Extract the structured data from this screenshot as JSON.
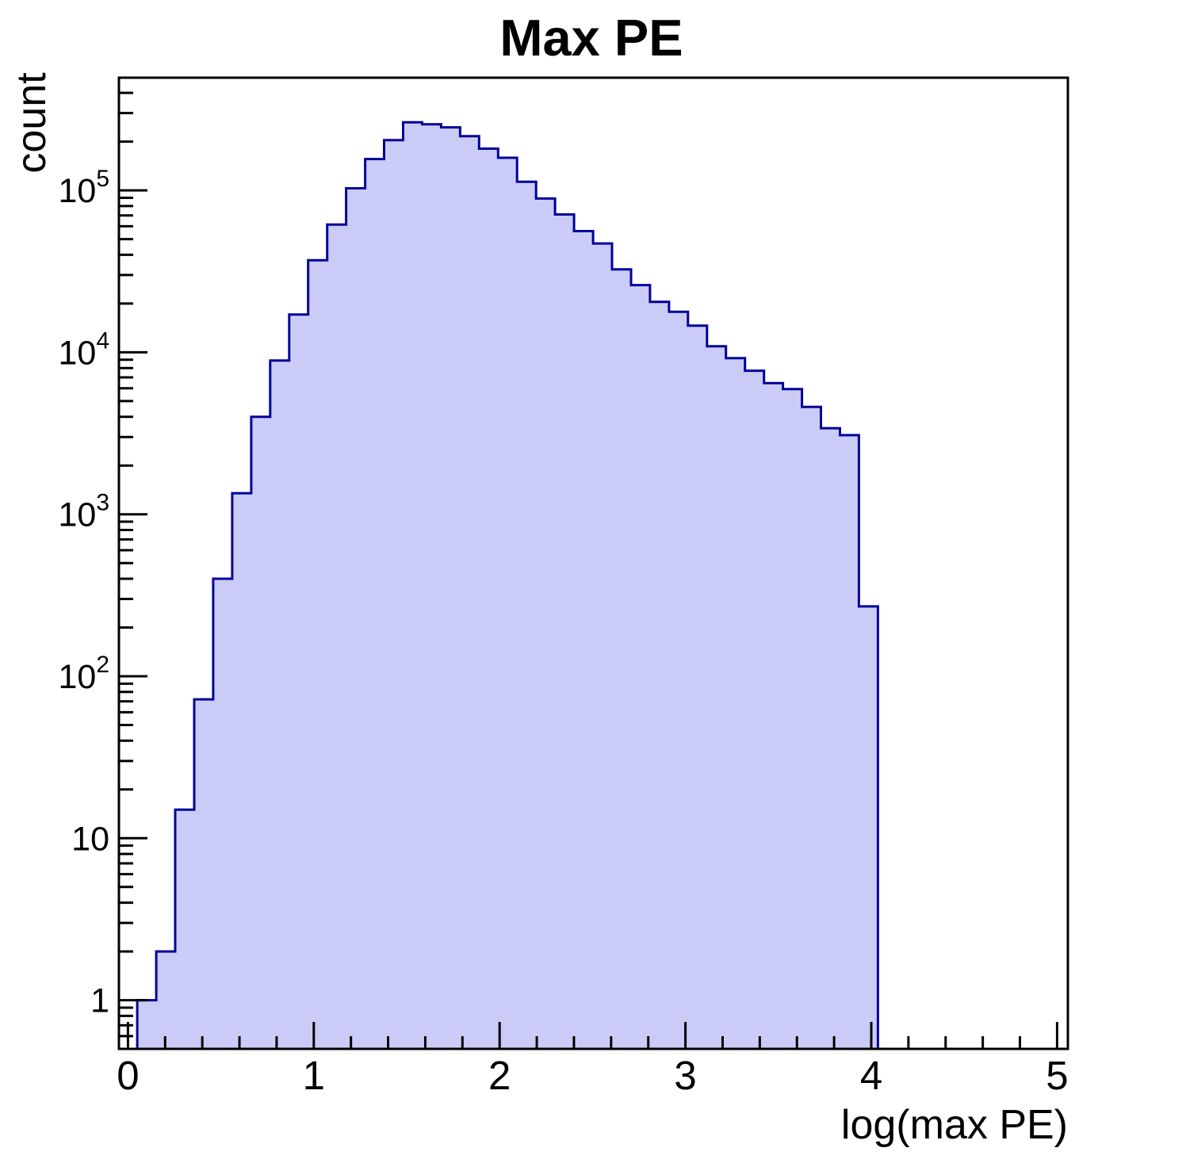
{
  "chart_data": {
    "type": "bar",
    "subtype": "histogram-step-filled",
    "title": "Max PE",
    "xlabel": "log(max PE)",
    "ylabel": "count",
    "yscale": "log",
    "xlim": [
      -0.05,
      5.06
    ],
    "ylim": [
      0.5,
      495000
    ],
    "grid": false,
    "legend": "none",
    "histogram": {
      "first_bin_left_edge": 0.05,
      "bin_width": 0.1022,
      "values": [
        1,
        2,
        15,
        72,
        400,
        1350,
        4000,
        8900,
        17100,
        37000,
        61500,
        103000,
        156000,
        204000,
        263000,
        256000,
        245000,
        216000,
        181000,
        159000,
        113000,
        89000,
        71000,
        56000,
        47000,
        32500,
        26000,
        20500,
        17800,
        14600,
        10900,
        9200,
        7700,
        6450,
        5930,
        4600,
        3400,
        3080,
        270
      ]
    },
    "x_ticks": [
      {
        "v": 0,
        "label": "0"
      },
      {
        "v": 1,
        "label": "1"
      },
      {
        "v": 2,
        "label": "2"
      },
      {
        "v": 3,
        "label": "3"
      },
      {
        "v": 4,
        "label": "4"
      },
      {
        "v": 5,
        "label": "5"
      }
    ],
    "x_minor_tick_step": 0.2,
    "y_ticks": [
      {
        "v": 1,
        "label": "1"
      },
      {
        "v": 10,
        "label": "10"
      },
      {
        "v": 100,
        "base": "10",
        "exp": "2"
      },
      {
        "v": 1000,
        "base": "10",
        "exp": "3"
      },
      {
        "v": 10000,
        "base": "10",
        "exp": "4"
      },
      {
        "v": 100000,
        "base": "10",
        "exp": "5"
      }
    ],
    "colors": {
      "fill": "#cbcbf8",
      "line": "#000099",
      "axis": "#000000",
      "text": "#000000",
      "background": "#ffffff"
    }
  }
}
